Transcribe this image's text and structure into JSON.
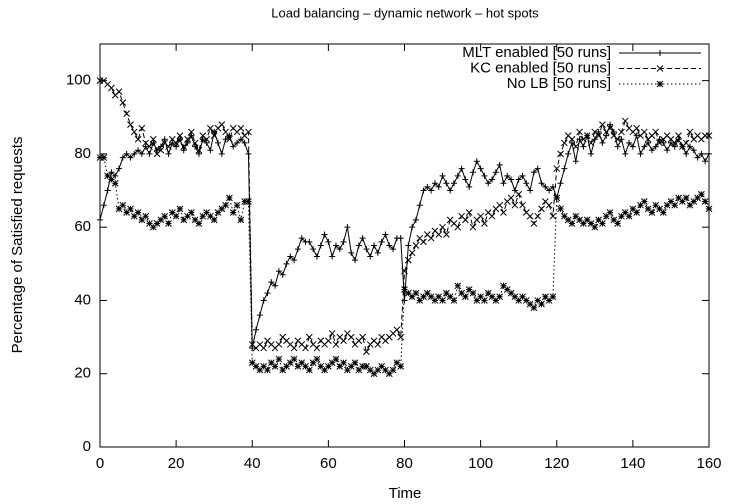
{
  "chart_data": {
    "type": "line",
    "title": "Load balancing – dynamic network – hot spots",
    "x_label": "Time",
    "y_label": "Percentage of Satisfied requests",
    "xlim": [
      0,
      160
    ],
    "ylim": [
      0,
      110
    ],
    "xticks": [
      0,
      20,
      40,
      60,
      80,
      100,
      120,
      140,
      160
    ],
    "yticks": [
      0,
      20,
      40,
      60,
      80,
      100
    ],
    "legend": "top-right",
    "x": [
      0,
      1,
      2,
      3,
      4,
      5,
      6,
      7,
      8,
      9,
      10,
      11,
      12,
      13,
      14,
      15,
      16,
      17,
      18,
      19,
      20,
      21,
      22,
      23,
      24,
      25,
      26,
      27,
      28,
      29,
      30,
      31,
      32,
      33,
      34,
      35,
      36,
      37,
      38,
      39,
      40,
      41,
      42,
      43,
      44,
      45,
      46,
      47,
      48,
      49,
      50,
      51,
      52,
      53,
      54,
      55,
      56,
      57,
      58,
      59,
      60,
      61,
      62,
      63,
      64,
      65,
      66,
      67,
      68,
      69,
      70,
      71,
      72,
      73,
      74,
      75,
      76,
      77,
      78,
      79,
      80,
      81,
      82,
      83,
      84,
      85,
      86,
      87,
      88,
      89,
      90,
      91,
      92,
      93,
      94,
      95,
      96,
      97,
      98,
      99,
      100,
      101,
      102,
      103,
      104,
      105,
      106,
      107,
      108,
      109,
      110,
      111,
      112,
      113,
      114,
      115,
      116,
      117,
      118,
      119,
      120,
      121,
      122,
      123,
      124,
      125,
      126,
      127,
      128,
      129,
      130,
      131,
      132,
      133,
      134,
      135,
      136,
      137,
      138,
      139,
      140,
      141,
      142,
      143,
      144,
      145,
      146,
      147,
      148,
      149,
      150,
      151,
      152,
      153,
      154,
      155,
      156,
      157,
      158,
      159,
      160
    ],
    "series": [
      {
        "name": "MLT enabled [50 runs]",
        "color": "#000000",
        "line": "solid",
        "marker": "plus",
        "values": [
          62,
          66,
          70,
          75,
          74,
          76,
          79,
          80,
          79,
          80,
          81,
          80,
          82,
          80,
          83,
          81,
          82,
          84,
          80,
          83,
          82,
          84,
          81,
          83,
          85,
          82,
          80,
          84,
          83,
          81,
          86,
          83,
          80,
          84,
          85,
          82,
          83,
          84,
          83,
          80,
          27,
          32,
          36,
          40,
          42,
          45,
          44,
          48,
          47,
          50,
          52,
          51,
          54,
          57,
          56,
          56,
          54,
          52,
          55,
          58,
          56,
          52,
          55,
          54,
          56,
          60,
          53,
          51,
          55,
          57,
          54,
          52,
          55,
          53,
          56,
          58,
          55,
          54,
          57,
          57,
          40,
          55,
          60,
          62,
          66,
          70,
          71,
          70,
          72,
          71,
          74,
          72,
          70,
          72,
          74,
          76,
          73,
          71,
          75,
          78,
          76,
          74,
          72,
          73,
          75,
          77,
          72,
          74,
          73,
          70,
          73,
          74,
          72,
          70,
          75,
          76,
          72,
          71,
          70,
          71,
          68,
          72,
          76,
          80,
          83,
          78,
          84,
          82,
          85,
          80,
          84,
          86,
          83,
          85,
          88,
          86,
          82,
          84,
          80,
          83,
          82,
          85,
          80,
          82,
          83,
          81,
          82,
          84,
          83,
          81,
          83,
          82,
          84,
          82,
          80,
          82,
          81,
          79,
          80,
          78,
          80
        ]
      },
      {
        "name": "KC enabled [50 runs]",
        "color": "#000000",
        "line": "dashed",
        "marker": "cross",
        "values": [
          100,
          100,
          99,
          98,
          96,
          97,
          94,
          91,
          88,
          86,
          84,
          87,
          83,
          82,
          84,
          80,
          81,
          83,
          82,
          84,
          83,
          85,
          82,
          84,
          86,
          83,
          81,
          85,
          84,
          87,
          85,
          87,
          88,
          86,
          84,
          87,
          86,
          87,
          85,
          86,
          28,
          27,
          28,
          27,
          29,
          28,
          27,
          28,
          30,
          29,
          28,
          27,
          29,
          28,
          27,
          30,
          28,
          27,
          29,
          28,
          29,
          31,
          28,
          30,
          29,
          31,
          30,
          28,
          29,
          30,
          26,
          28,
          29,
          28,
          30,
          29,
          30,
          31,
          32,
          30,
          48,
          51,
          53,
          55,
          57,
          56,
          58,
          57,
          59,
          58,
          60,
          58,
          62,
          61,
          60,
          63,
          62,
          64,
          60,
          62,
          63,
          61,
          64,
          63,
          65,
          66,
          64,
          67,
          68,
          66,
          69,
          66,
          64,
          63,
          61,
          63,
          65,
          67,
          66,
          63,
          76,
          80,
          83,
          85,
          84,
          82,
          86,
          84,
          85,
          83,
          86,
          85,
          88,
          86,
          87,
          85,
          84,
          86,
          89,
          87,
          86,
          87,
          85,
          86,
          84,
          85,
          86,
          83,
          84,
          85,
          84,
          83,
          85,
          82,
          83,
          86,
          84,
          85,
          84,
          85,
          85
        ]
      },
      {
        "name": "No LB [50 runs]",
        "color": "#000000",
        "line": "dotted",
        "marker": "star",
        "values": [
          79,
          79,
          74,
          73,
          72,
          65,
          66,
          64,
          65,
          63,
          64,
          62,
          63,
          61,
          60,
          61,
          62,
          63,
          61,
          64,
          63,
          65,
          62,
          63,
          64,
          62,
          61,
          63,
          64,
          63,
          62,
          64,
          65,
          66,
          68,
          64,
          66,
          62,
          67,
          67,
          23,
          22,
          21,
          22,
          21,
          23,
          22,
          24,
          21,
          22,
          23,
          24,
          22,
          23,
          22,
          21,
          23,
          24,
          22,
          21,
          22,
          23,
          24,
          22,
          23,
          21,
          22,
          23,
          21,
          22,
          22,
          21,
          20,
          21,
          22,
          21,
          20,
          21,
          23,
          22,
          43,
          42,
          41,
          42,
          40,
          41,
          42,
          41,
          40,
          41,
          40,
          42,
          41,
          40,
          44,
          42,
          41,
          43,
          42,
          40,
          41,
          40,
          42,
          41,
          40,
          41,
          44,
          43,
          42,
          41,
          40,
          41,
          40,
          39,
          38,
          40,
          39,
          41,
          40,
          41,
          68,
          65,
          63,
          62,
          61,
          63,
          62,
          61,
          62,
          61,
          60,
          62,
          61,
          63,
          64,
          62,
          61,
          63,
          64,
          63,
          65,
          64,
          66,
          67,
          65,
          64,
          66,
          65,
          64,
          66,
          67,
          66,
          68,
          67,
          68,
          66,
          67,
          68,
          69,
          67,
          65
        ]
      }
    ]
  }
}
